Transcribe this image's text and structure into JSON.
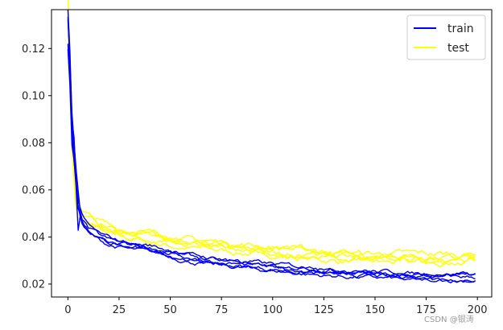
{
  "chart_data": {
    "type": "line",
    "title": "",
    "xlabel": "",
    "ylabel": "",
    "xlim": [
      -8,
      207
    ],
    "ylim": [
      0.0145,
      0.1365
    ],
    "xticks": [
      0,
      25,
      50,
      75,
      100,
      125,
      150,
      175,
      200
    ],
    "yticks": [
      0.02,
      0.04,
      0.06,
      0.08,
      0.1,
      0.12
    ],
    "ytick_labels": [
      "0.02",
      "0.04",
      "0.06",
      "0.08",
      "0.10",
      "0.12"
    ],
    "grid": false,
    "legend": {
      "placement": "top-right",
      "entries": [
        "train",
        "test"
      ]
    },
    "series": [
      {
        "name": "train",
        "color": "#0000ff",
        "runs": 5,
        "x": [
          0,
          1,
          2,
          3,
          4,
          5,
          7,
          10,
          15,
          20,
          30,
          40,
          50,
          60,
          75,
          100,
          125,
          150,
          175,
          199
        ],
        "y": [
          0.128,
          0.112,
          0.088,
          0.075,
          0.062,
          0.053,
          0.047,
          0.043,
          0.04,
          0.038,
          0.036,
          0.035,
          0.033,
          0.031,
          0.029,
          0.027,
          0.025,
          0.024,
          0.023,
          0.023
        ]
      },
      {
        "name": "test",
        "color": "#ffff00",
        "runs": 5,
        "x": [
          0,
          1,
          2,
          3,
          4,
          5,
          7,
          10,
          15,
          20,
          30,
          40,
          50,
          60,
          75,
          100,
          125,
          150,
          175,
          199
        ],
        "y": [
          0.133,
          0.11,
          0.085,
          0.072,
          0.06,
          0.053,
          0.049,
          0.047,
          0.045,
          0.043,
          0.041,
          0.04,
          0.038,
          0.037,
          0.036,
          0.034,
          0.032,
          0.031,
          0.031,
          0.031
        ]
      }
    ]
  },
  "watermark": "CSDN @银涛"
}
